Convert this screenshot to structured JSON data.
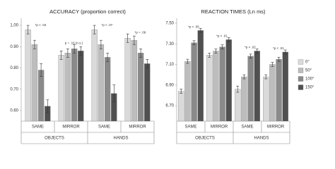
{
  "chart_data": [
    {
      "type": "bar",
      "title": "ACCURACY (proportion correct)",
      "groups": [
        "OBJECTS",
        "HANDS"
      ],
      "categories": [
        "SAME",
        "MIRROR",
        "SAME",
        "MIRROR"
      ],
      "annotations": [
        "*p < .03",
        "p = .16 (n.s.)",
        "*p < .07",
        "*p = .09"
      ],
      "ylim": [
        0.55,
        1.02
      ],
      "yticks": [
        {
          "value": 0.6,
          "label": "0.60"
        },
        {
          "value": 0.7,
          "label": "0.70"
        },
        {
          "value": 0.8,
          "label": "0.80"
        },
        {
          "value": 0.9,
          "label": "0.90"
        },
        {
          "value": 1.0,
          "label": "1.00"
        }
      ],
      "grid": false,
      "series": [
        {
          "name": "0°",
          "color": "#dadada",
          "values": [
            0.98,
            0.86,
            0.98,
            0.94
          ],
          "errors": [
            0.02,
            0.02,
            0.02,
            0.02
          ]
        },
        {
          "name": "50°",
          "color": "#bdbdbd",
          "values": [
            0.91,
            0.87,
            0.91,
            0.93
          ],
          "errors": [
            0.02,
            0.02,
            0.02,
            0.02
          ]
        },
        {
          "name": "100°",
          "color": "#8a8a8a",
          "values": [
            0.79,
            0.89,
            0.85,
            0.87
          ],
          "errors": [
            0.03,
            0.02,
            0.02,
            0.02
          ]
        },
        {
          "name": "150°",
          "color": "#505050",
          "values": [
            0.62,
            0.88,
            0.68,
            0.82
          ],
          "errors": [
            0.03,
            0.02,
            0.04,
            0.02
          ]
        }
      ]
    },
    {
      "type": "bar",
      "title": "REACTION TIMES (Ln ms)",
      "groups": [
        "OBJECTS",
        "HANDS"
      ],
      "categories": [
        "SAME",
        "MIRROR",
        "SAME",
        "MIRROR"
      ],
      "annotations": [
        "*p < .05",
        "*p < .01",
        "*p < .02",
        "*p < .01"
      ],
      "ylim": [
        6.55,
        7.52
      ],
      "yticks": [
        {
          "value": 6.7,
          "label": "6.70"
        },
        {
          "value": 6.9,
          "label": "6.90"
        },
        {
          "value": 7.1,
          "label": "7.10"
        },
        {
          "value": 7.3,
          "label": "7.30"
        },
        {
          "value": 7.5,
          "label": "7.50"
        }
      ],
      "grid": false,
      "legend": "right",
      "series": [
        {
          "name": "0°",
          "color": "#dadada",
          "values": [
            6.84,
            7.19,
            6.86,
            6.98
          ],
          "errors": [
            0.02,
            0.02,
            0.03,
            0.02
          ]
        },
        {
          "name": "50°",
          "color": "#bdbdbd",
          "values": [
            7.13,
            7.23,
            6.98,
            7.1
          ],
          "errors": [
            0.02,
            0.02,
            0.02,
            0.02
          ]
        },
        {
          "name": "100°",
          "color": "#8a8a8a",
          "values": [
            7.31,
            7.27,
            7.18,
            7.15
          ],
          "errors": [
            0.02,
            0.02,
            0.02,
            0.02
          ]
        },
        {
          "name": "150°",
          "color": "#505050",
          "values": [
            7.43,
            7.34,
            7.23,
            7.22
          ],
          "errors": [
            0.02,
            0.02,
            0.02,
            0.02
          ]
        }
      ]
    }
  ]
}
